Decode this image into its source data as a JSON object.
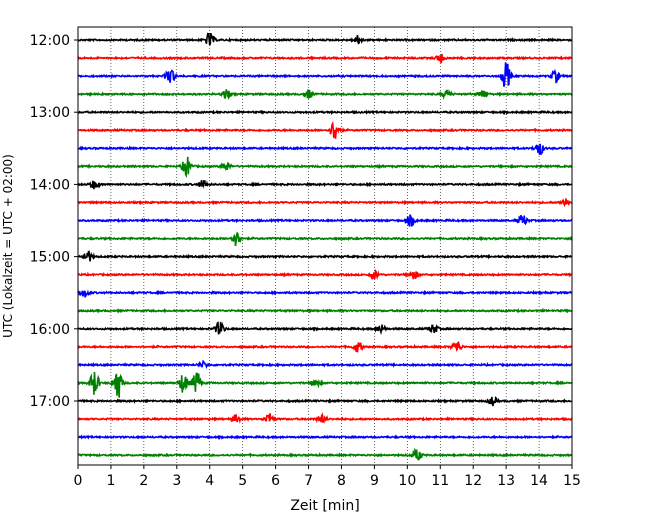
{
  "chart_data": {
    "type": "line",
    "title": "",
    "xlabel": "Zeit  [min]",
    "ylabel": "UTC (Lokalzeit = UTC + 02:00)",
    "xlim": [
      0,
      15
    ],
    "x_ticks": [
      "0",
      "1",
      "2",
      "3",
      "4",
      "5",
      "6",
      "7",
      "8",
      "9",
      "10",
      "11",
      "12",
      "13",
      "14",
      "15"
    ],
    "y_tick_labels": [
      "12:00",
      "13:00",
      "14:00",
      "15:00",
      "16:00",
      "17:00"
    ],
    "y_tick_rows": [
      0,
      4,
      8,
      12,
      16,
      20
    ],
    "grid": "vertical dotted at each minute",
    "series_colors": [
      "#000000",
      "#ff0000",
      "#0000ff",
      "#008000"
    ],
    "rows": [
      {
        "start": "12:00",
        "color": "#000000",
        "bursts": [
          [
            4.0,
            0.5
          ],
          [
            8.5,
            0.3
          ]
        ]
      },
      {
        "start": "12:15",
        "color": "#ff0000",
        "bursts": [
          [
            11.0,
            0.3
          ]
        ]
      },
      {
        "start": "12:30",
        "color": "#0000ff",
        "bursts": [
          [
            2.8,
            0.6
          ],
          [
            13.0,
            1.0
          ],
          [
            14.5,
            0.4
          ]
        ]
      },
      {
        "start": "12:45",
        "color": "#008000",
        "bursts": [
          [
            4.5,
            0.3
          ],
          [
            7.0,
            0.3
          ],
          [
            11.2,
            0.3
          ],
          [
            12.3,
            0.3
          ]
        ]
      },
      {
        "start": "13:00",
        "color": "#000000",
        "bursts": []
      },
      {
        "start": "13:15",
        "color": "#ff0000",
        "bursts": [
          [
            7.8,
            0.8
          ]
        ]
      },
      {
        "start": "13:30",
        "color": "#0000ff",
        "bursts": [
          [
            14.0,
            0.5
          ]
        ]
      },
      {
        "start": "13:45",
        "color": "#008000",
        "bursts": [
          [
            3.3,
            0.7
          ],
          [
            4.5,
            0.3
          ]
        ]
      },
      {
        "start": "14:00",
        "color": "#000000",
        "bursts": [
          [
            0.5,
            0.3
          ],
          [
            3.8,
            0.3
          ]
        ]
      },
      {
        "start": "14:15",
        "color": "#ff0000",
        "bursts": [
          [
            14.8,
            0.3
          ]
        ]
      },
      {
        "start": "14:30",
        "color": "#0000ff",
        "bursts": [
          [
            10.1,
            0.4
          ],
          [
            13.5,
            0.4
          ]
        ]
      },
      {
        "start": "14:45",
        "color": "#008000",
        "bursts": [
          [
            4.8,
            0.5
          ]
        ]
      },
      {
        "start": "15:00",
        "color": "#000000",
        "bursts": [
          [
            0.3,
            0.4
          ]
        ]
      },
      {
        "start": "15:15",
        "color": "#ff0000",
        "bursts": [
          [
            9.0,
            0.3
          ],
          [
            10.2,
            0.3
          ]
        ]
      },
      {
        "start": "15:30",
        "color": "#0000ff",
        "bursts": [
          [
            0.2,
            0.3
          ]
        ]
      },
      {
        "start": "15:45",
        "color": "#008000",
        "bursts": []
      },
      {
        "start": "16:00",
        "color": "#000000",
        "bursts": [
          [
            4.3,
            0.5
          ],
          [
            9.2,
            0.3
          ],
          [
            10.8,
            0.3
          ]
        ]
      },
      {
        "start": "16:15",
        "color": "#ff0000",
        "bursts": [
          [
            8.5,
            0.4
          ],
          [
            11.5,
            0.4
          ]
        ]
      },
      {
        "start": "16:30",
        "color": "#0000ff",
        "bursts": [
          [
            3.8,
            0.2
          ]
        ]
      },
      {
        "start": "16:45",
        "color": "#008000",
        "bursts": [
          [
            0.5,
            0.9
          ],
          [
            1.2,
            1.2
          ],
          [
            3.2,
            0.7
          ],
          [
            3.6,
            0.8
          ],
          [
            7.2,
            0.3
          ]
        ]
      },
      {
        "start": "17:00",
        "color": "#000000",
        "bursts": [
          [
            12.6,
            0.3
          ]
        ]
      },
      {
        "start": "17:15",
        "color": "#ff0000",
        "bursts": [
          [
            4.8,
            0.3
          ],
          [
            5.8,
            0.4
          ],
          [
            7.4,
            0.3
          ]
        ]
      },
      {
        "start": "17:30",
        "color": "#0000ff",
        "bursts": []
      },
      {
        "start": "17:45",
        "color": "#008000",
        "bursts": [
          [
            10.3,
            0.4
          ]
        ]
      }
    ]
  }
}
